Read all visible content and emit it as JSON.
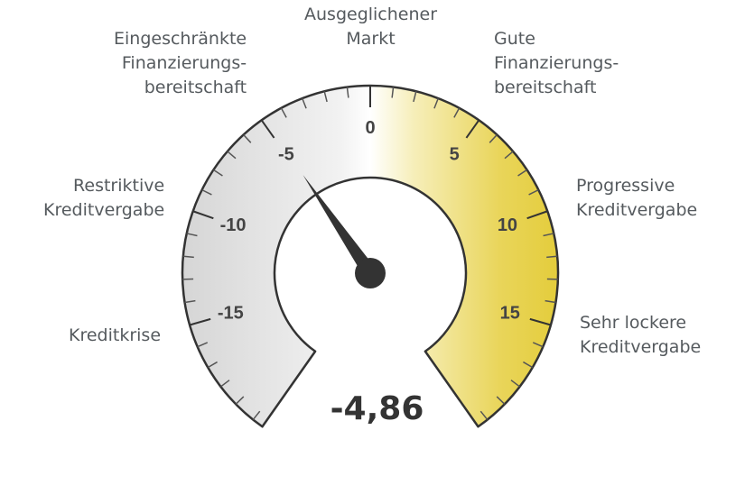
{
  "chart_data": {
    "type": "gauge",
    "min": -20,
    "max": 20,
    "major_ticks": [
      -15,
      -10,
      -5,
      0,
      5,
      10,
      15
    ],
    "major_tick_labels": [
      "-15",
      "-10",
      "-5",
      "0",
      "5",
      "10",
      "15"
    ],
    "minor_tick_step": 1,
    "value": -4.86,
    "value_label": "-4,86",
    "zones": [
      {
        "text": "Kreditkrise",
        "value": -15
      },
      {
        "text": "Restriktive\nKreditvergabe",
        "value": -10
      },
      {
        "text": "Eingeschränkte\nFinanzierungs-\nbereitschaft",
        "value": -5
      },
      {
        "text": "Ausgeglichener\nMarkt",
        "value": 0
      },
      {
        "text": "Gute\nFinanzierungs-\nbereitschaft",
        "value": 5
      },
      {
        "text": "Progressive\nKreditvergabe",
        "value": 10
      },
      {
        "text": "Sehr lockere\nKreditvergabe",
        "value": 15
      }
    ],
    "colors": {
      "negative": "#dcdcdc",
      "neutral": "#ffffff",
      "positive": "#e6cf3a",
      "outline": "#333333",
      "needle": "#333333",
      "text": "#555a5e"
    }
  }
}
